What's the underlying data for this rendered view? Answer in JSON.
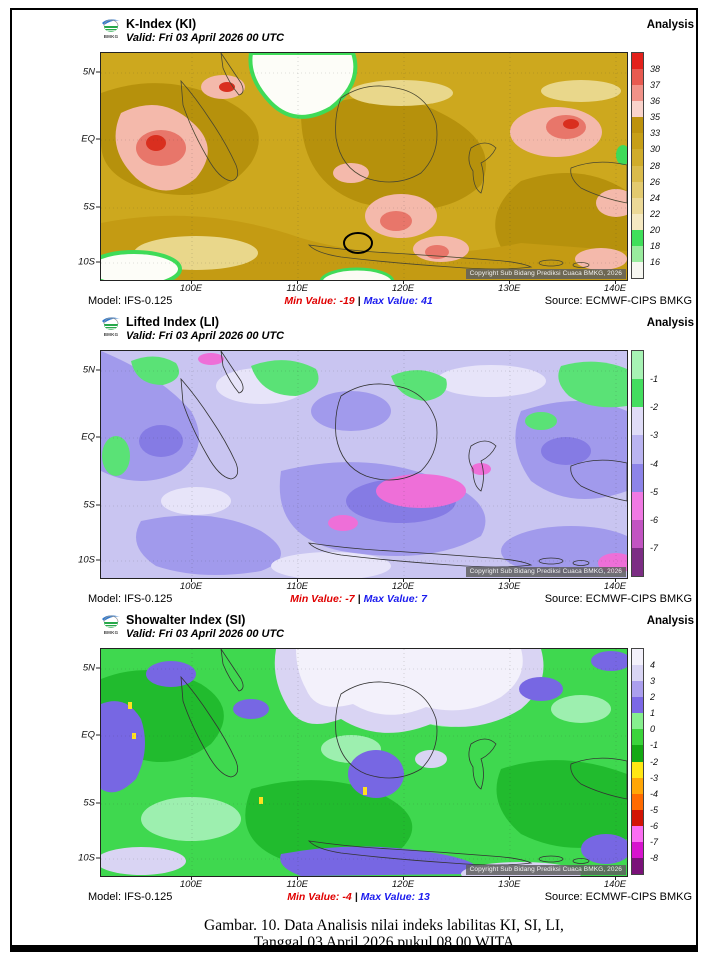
{
  "page": {
    "caption_line1": "Gambar. 10. Data Analisis nilai indeks labilitas KI, SI, LI,",
    "caption_line2": "Tanggal 03 April 2026 pukul 08.00 WITA"
  },
  "maps": [
    {
      "id": "ki",
      "logo_text": "BMKG",
      "title": "K-Index (KI)",
      "valid": "Valid: Fri 03 April 2026 00 UTC",
      "mode": "Analysis",
      "model": "Model: IFS-0.125",
      "min_label": "Min Value:",
      "min_value": "-19",
      "sep": "|",
      "max_label": "Max Value:",
      "max_value": "41",
      "source": "Source: ECMWF-CIPS BMKG",
      "copyright": "Copyright Sub Bidang Prediksi Cuaca BMKG, 2026",
      "x_ticks": [
        "100E",
        "110E",
        "120E",
        "130E",
        "140E"
      ],
      "y_ticks": [
        "5N",
        "EQ",
        "5S",
        "10S"
      ],
      "colorbar": [
        {
          "color": "#e3211b",
          "label": "38"
        },
        {
          "color": "#e85a50",
          "label": "37"
        },
        {
          "color": "#f19288",
          "label": "36"
        },
        {
          "color": "#f9d3cb",
          "label": "35"
        },
        {
          "color": "#bd920d",
          "label": "33"
        },
        {
          "color": "#c79f17",
          "label": "30"
        },
        {
          "color": "#d0ac2b",
          "label": "28"
        },
        {
          "color": "#dabb4b",
          "label": "26"
        },
        {
          "color": "#e3ca6f",
          "label": "24"
        },
        {
          "color": "#ecd997",
          "label": "22"
        },
        {
          "color": "#f5e9c2",
          "label": "20"
        },
        {
          "color": "#3fdf5a",
          "label": "18"
        },
        {
          "color": "#99ec9e",
          "label": "16"
        },
        {
          "color": "#f7f7f1",
          "label": ""
        }
      ]
    },
    {
      "id": "li",
      "logo_text": "BMKG",
      "title": "Lifted Index (LI)",
      "valid": "Valid: Fri 03 April 2026 00 UTC",
      "mode": "Analysis",
      "model": "Model: IFS-0.125",
      "min_label": "Min Value:",
      "min_value": "-7",
      "sep": "|",
      "max_label": "Max Value:",
      "max_value": "7",
      "source": "Source: ECMWF-CIPS BMKG",
      "copyright": "Copyright Sub Bidang Prediksi Cuaca BMKG, 2026",
      "x_ticks": [
        "100E",
        "110E",
        "120E",
        "130E",
        "140E"
      ],
      "y_ticks": [
        "5N",
        "EQ",
        "5S",
        "10S"
      ],
      "colorbar": [
        {
          "color": "#a7f3b4",
          "label": "-1"
        },
        {
          "color": "#43de5f",
          "label": "-2"
        },
        {
          "color": "#dfdcf7",
          "label": "-3"
        },
        {
          "color": "#bab4f1",
          "label": "-4"
        },
        {
          "color": "#8d84e9",
          "label": "-5"
        },
        {
          "color": "#f079e3",
          "label": "-6"
        },
        {
          "color": "#c254c2",
          "label": "-7"
        },
        {
          "color": "#7c2d84",
          "label": ""
        }
      ]
    },
    {
      "id": "si",
      "logo_text": "BMKG",
      "title": "Showalter Index (SI)",
      "valid": "Valid: Fri 03 April 2026 00 UTC",
      "mode": "Analysis",
      "model": "Model: IFS-0.125",
      "min_label": "Min Value:",
      "min_value": "-4",
      "sep": "|",
      "max_label": "Max Value:",
      "max_value": "13",
      "source": "Source: ECMWF-CIPS BMKG",
      "copyright": "Copyright Sub Bidang Prediksi Cuaca BMKG, 2026",
      "x_ticks": [
        "100E",
        "110E",
        "120E",
        "130E",
        "140E"
      ],
      "y_ticks": [
        "5N",
        "EQ",
        "5S",
        "10S"
      ],
      "colorbar": [
        {
          "color": "#f3f1fb",
          "label": "4"
        },
        {
          "color": "#d9d5f4",
          "label": "3"
        },
        {
          "color": "#ab9fee",
          "label": "2"
        },
        {
          "color": "#7b68e6",
          "label": "1"
        },
        {
          "color": "#86ef8e",
          "label": "0"
        },
        {
          "color": "#3bd43b",
          "label": "-1"
        },
        {
          "color": "#13a913",
          "label": "-2"
        },
        {
          "color": "#ffe714",
          "label": "-3"
        },
        {
          "color": "#ffa606",
          "label": "-4"
        },
        {
          "color": "#ff6a00",
          "label": "-5"
        },
        {
          "color": "#d21404",
          "label": "-6"
        },
        {
          "color": "#fb6ef2",
          "label": "-7"
        },
        {
          "color": "#d714ce",
          "label": "-8"
        },
        {
          "color": "#7a1179",
          "label": ""
        }
      ]
    }
  ]
}
